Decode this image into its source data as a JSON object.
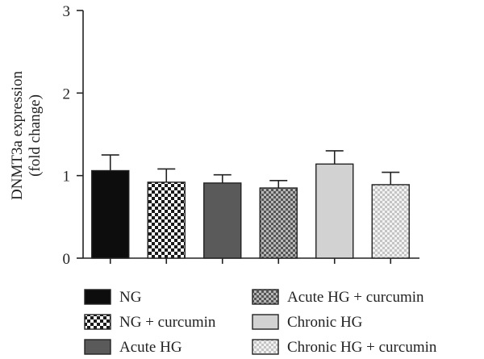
{
  "chart_data": {
    "type": "bar",
    "ylabel_lines": [
      "DNMT3a expression",
      "(fold change)"
    ],
    "ylim": [
      0,
      3
    ],
    "yticks": [
      "0",
      "1",
      "2",
      "3"
    ],
    "categories": [
      "NG",
      "NG + curcumin",
      "Acute HG",
      "Acute HG + curcumin",
      "Chronic HG",
      "Chronic HG + curcumin"
    ],
    "values": [
      1.06,
      0.92,
      0.91,
      0.85,
      1.14,
      0.89
    ],
    "errors": [
      0.19,
      0.16,
      0.1,
      0.09,
      0.16,
      0.15
    ],
    "fills": [
      {
        "color": "#0d0d0d",
        "pattern": "solid"
      },
      {
        "color": "#1a1a1a",
        "pattern": "checker-coarse"
      },
      {
        "color": "#5a5a5a",
        "pattern": "solid"
      },
      {
        "color": "#6a6a6a",
        "pattern": "checker-fine"
      },
      {
        "color": "#d2d2d2",
        "pattern": "solid"
      },
      {
        "color": "#c9c9c9",
        "pattern": "checker-light"
      }
    ],
    "legend": {
      "placement": "bottom",
      "columns": 2,
      "entries": [
        "NG",
        "NG + curcumin",
        "Acute HG",
        "Acute HG + curcumin",
        "Chronic HG",
        "Chronic HG + curcumin"
      ]
    },
    "grid": false
  }
}
